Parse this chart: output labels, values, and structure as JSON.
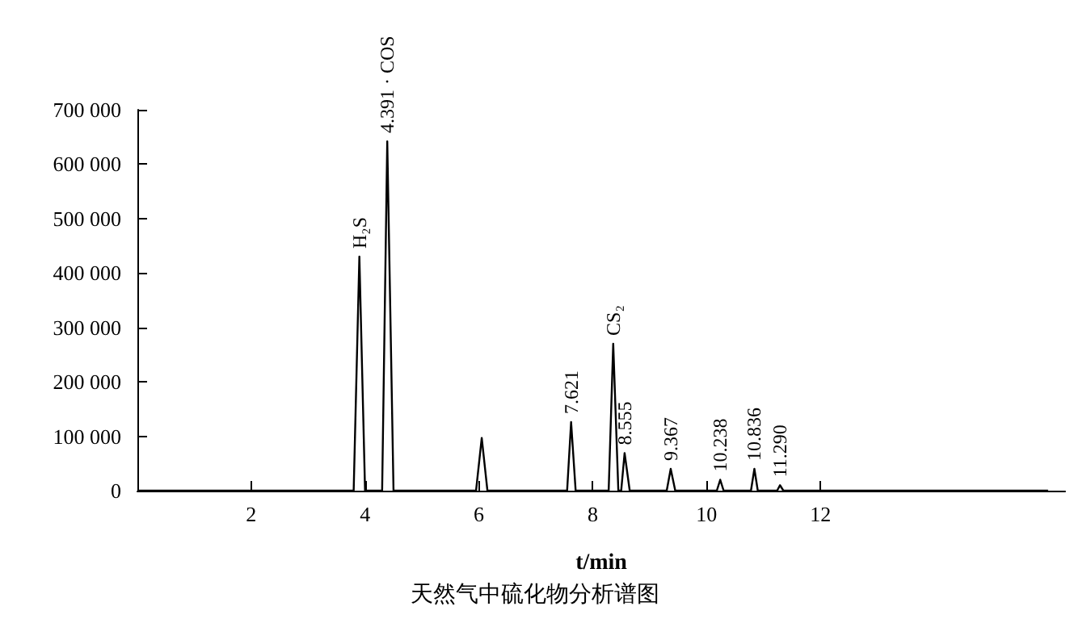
{
  "chart_data": {
    "type": "line",
    "title": "天然气中硫化物分析谱图",
    "xlabel": "t/min",
    "x": [
      0,
      3.8,
      3.9,
      4.0,
      4.3,
      4.39,
      4.5,
      5.95,
      6.05,
      6.15,
      7.55,
      7.62,
      7.7,
      8.28,
      8.36,
      8.45,
      8.5,
      8.56,
      8.65,
      9.3,
      9.37,
      9.45,
      10.18,
      10.24,
      10.3,
      10.78,
      10.84,
      10.9,
      11.24,
      11.29,
      11.35,
      16
    ],
    "values": [
      0,
      0,
      430000,
      0,
      0,
      642000,
      0,
      0,
      97000,
      0,
      0,
      126000,
      0,
      0,
      270000,
      0,
      0,
      69000,
      0,
      0,
      40000,
      0,
      0,
      20000,
      0,
      0,
      40000,
      0,
      0,
      10000,
      0,
      0
    ],
    "color": "#000000",
    "annotations": [
      {
        "text": "H₂S",
        "x": 3.9,
        "y": 430000
      },
      {
        "text": "4.391 · COS",
        "x": 4.39,
        "y": 642000
      },
      {
        "text": "7.621",
        "x": 7.62,
        "y": 126000
      },
      {
        "text": "CS₂",
        "x": 8.36,
        "y": 270000
      },
      {
        "text": "8.555",
        "x": 8.56,
        "y": 69000
      },
      {
        "text": "9.367",
        "x": 9.37,
        "y": 40000
      },
      {
        "text": "10.238",
        "x": 10.24,
        "y": 20000
      },
      {
        "text": "10.836",
        "x": 10.84,
        "y": 40000
      },
      {
        "text": "11.290",
        "x": 11.29,
        "y": 10000
      }
    ],
    "xlim": [
      0,
      16.3
    ],
    "xticks": [
      2,
      4,
      6,
      8,
      10,
      12
    ],
    "ylim": [
      0,
      700000
    ],
    "yticks": [
      0,
      {
        "value": 100000,
        "label": "100 000"
      },
      {
        "value": 200000,
        "label": "200 000"
      },
      {
        "value": 300000,
        "label": "300 000"
      },
      {
        "value": 400000,
        "label": "400 000"
      },
      {
        "value": 500000,
        "label": "500 000"
      },
      {
        "value": 600000,
        "label": "600 000"
      },
      {
        "value": 700000,
        "label": "700 000"
      }
    ],
    "marker": "none",
    "line_style": "solid"
  }
}
